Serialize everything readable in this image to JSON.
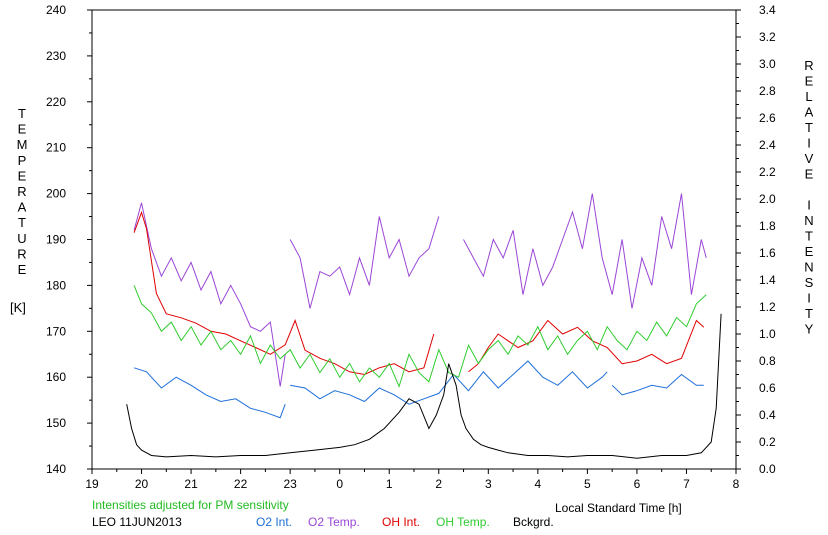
{
  "chart_data": {
    "type": "line",
    "x_label": "Local Standard Time [h]",
    "x_ticks": [
      "19",
      "20",
      "21",
      "22",
      "23",
      "0",
      "1",
      "2",
      "3",
      "4",
      "5",
      "6",
      "7",
      "8"
    ],
    "y_left_label_letters": [
      "T",
      "E",
      "M",
      "P",
      "E",
      "R",
      "A",
      "T",
      "U",
      "R",
      "E"
    ],
    "y_left_unit": "[K]",
    "y_left_ticks": [
      "140",
      "150",
      "160",
      "170",
      "180",
      "190",
      "200",
      "210",
      "220",
      "230",
      "240"
    ],
    "ylim_left": [
      140,
      240
    ],
    "y_right_label_letters": [
      "R",
      "E",
      "L",
      "A",
      "T",
      "I",
      "V",
      "E",
      "",
      "I",
      "N",
      "T",
      "E",
      "N",
      "S",
      "I",
      "T",
      "Y"
    ],
    "y_right_ticks": [
      "0.0",
      "0.2",
      "0.4",
      "0.6",
      "0.8",
      "1.0",
      "1.2",
      "1.4",
      "1.6",
      "1.8",
      "2.0",
      "2.2",
      "2.4",
      "2.6",
      "2.8",
      "3.0",
      "3.2",
      "3.4"
    ],
    "ylim_right": [
      0,
      3.4
    ],
    "xlim": [
      19,
      32
    ],
    "note": "Intensities adjusted for PM sensitivity",
    "station": "LEO 11JUN2013",
    "colors": {
      "o2_int": "#1e6fd9",
      "o2_temp": "#9b46d6",
      "oh_int": "#e00000",
      "oh_temp": "#30cc30",
      "bckgrd": "#000000",
      "note": "#22bb22"
    },
    "series": [
      {
        "name": "O2 Int.",
        "axis": "right",
        "segments": [
          {
            "x": [
              19.85,
              20.1,
              20.4,
              20.7,
              21.0,
              21.3,
              21.6,
              21.9,
              22.2,
              22.5,
              22.8,
              22.9
            ],
            "y": [
              0.75,
              0.72,
              0.6,
              0.68,
              0.62,
              0.55,
              0.5,
              0.52,
              0.45,
              0.42,
              0.38,
              0.48
            ]
          },
          {
            "x": [
              23.0,
              23.3,
              23.6,
              23.9,
              24.2,
              24.5,
              24.8,
              25.1,
              25.4,
              25.7,
              26.0,
              26.3,
              26.6,
              26.9,
              27.2,
              27.5,
              27.8,
              28.1,
              28.4,
              28.7,
              29.0,
              29.3,
              29.4
            ],
            "y": [
              0.62,
              0.6,
              0.52,
              0.58,
              0.55,
              0.5,
              0.6,
              0.55,
              0.48,
              0.52,
              0.56,
              0.7,
              0.58,
              0.72,
              0.6,
              0.7,
              0.8,
              0.68,
              0.62,
              0.72,
              0.6,
              0.68,
              0.72
            ]
          },
          {
            "x": [
              29.5,
              29.7,
              30.0,
              30.3,
              30.6,
              30.9,
              31.2,
              31.35
            ],
            "y": [
              0.62,
              0.55,
              0.58,
              0.62,
              0.6,
              0.7,
              0.62,
              0.62
            ]
          }
        ]
      },
      {
        "name": "O2 Temp.",
        "axis": "left",
        "segments": [
          {
            "x": [
              19.85,
              20.0,
              20.2,
              20.4,
              20.6,
              20.8,
              21.0,
              21.2,
              21.4,
              21.6,
              21.8,
              22.0,
              22.2,
              22.4,
              22.6,
              22.8,
              22.9
            ],
            "y": [
              192,
              198,
              188,
              182,
              186,
              181,
              185,
              179,
              183,
              176,
              180,
              176,
              171,
              170,
              172,
              158,
              165
            ]
          },
          {
            "x": [
              23.0,
              23.2,
              23.4,
              23.6,
              23.8,
              24.0,
              24.2,
              24.4,
              24.6,
              24.8,
              25.0,
              25.2,
              25.4,
              25.6,
              25.8,
              26.0
            ],
            "y": [
              190,
              186,
              175,
              183,
              182,
              184,
              178,
              186,
              180,
              195,
              186,
              190,
              182,
              186,
              188,
              195
            ]
          },
          {
            "x": [
              26.5,
              26.7,
              26.9,
              27.1,
              27.3,
              27.5,
              27.7,
              27.9,
              28.1,
              28.3,
              28.5,
              28.7,
              28.9,
              29.1,
              29.3,
              29.5,
              29.7,
              29.9,
              30.1,
              30.3,
              30.5,
              30.7,
              30.9,
              31.1,
              31.3,
              31.4
            ],
            "y": [
              190,
              186,
              182,
              190,
              186,
              192,
              178,
              188,
              180,
              184,
              190,
              196,
              188,
              200,
              186,
              178,
              190,
              175,
              186,
              180,
              195,
              188,
              200,
              178,
              190,
              186
            ]
          }
        ]
      },
      {
        "name": "OH Int.",
        "axis": "right",
        "segments": [
          {
            "x": [
              19.85,
              20.0,
              20.1,
              20.3,
              20.5,
              20.8,
              21.1,
              21.4,
              21.7,
              22.0,
              22.3,
              22.6,
              22.9,
              23.1,
              23.3,
              23.6,
              23.9,
              24.2,
              24.5,
              24.8,
              25.1,
              25.4,
              25.7,
              25.9
            ],
            "y": [
              1.75,
              1.9,
              1.78,
              1.3,
              1.15,
              1.12,
              1.08,
              1.02,
              1.0,
              0.95,
              0.9,
              0.85,
              0.92,
              1.1,
              0.88,
              0.82,
              0.78,
              0.72,
              0.7,
              0.75,
              0.78,
              0.72,
              0.75,
              1.0
            ]
          },
          {
            "x": [
              26.6,
              26.8,
              27.0,
              27.2,
              27.4,
              27.6,
              27.9,
              28.2,
              28.5,
              28.8,
              29.1,
              29.4,
              29.7,
              30.0,
              30.3,
              30.6,
              30.9,
              31.2,
              31.35
            ],
            "y": [
              0.72,
              0.78,
              0.9,
              1.0,
              0.95,
              0.9,
              0.95,
              1.1,
              1.0,
              1.05,
              0.95,
              0.9,
              0.78,
              0.8,
              0.85,
              0.78,
              0.82,
              1.1,
              1.05
            ]
          }
        ]
      },
      {
        "name": "OH Temp.",
        "axis": "left",
        "segments": [
          {
            "x": [
              19.85,
              20.0,
              20.2,
              20.4,
              20.6,
              20.8,
              21.0,
              21.2,
              21.4,
              21.6,
              21.8,
              22.0,
              22.2,
              22.4,
              22.6,
              22.8,
              23.0,
              23.2,
              23.4,
              23.6,
              23.8,
              24.0,
              24.2,
              24.4,
              24.6,
              24.8,
              25.0,
              25.2,
              25.4,
              25.6,
              25.8,
              26.0,
              26.2,
              26.4,
              26.6,
              26.8,
              27.0,
              27.2,
              27.4,
              27.6,
              27.8,
              28.0,
              28.2,
              28.4,
              28.6,
              28.8,
              29.0,
              29.2,
              29.4,
              29.6,
              29.8,
              30.0,
              30.2,
              30.4,
              30.6,
              30.8,
              31.0,
              31.2,
              31.4
            ],
            "y": [
              180,
              176,
              174,
              170,
              172,
              168,
              171,
              167,
              170,
              166,
              168,
              165,
              169,
              163,
              167,
              164,
              166,
              162,
              165,
              161,
              164,
              160,
              163,
              159,
              162,
              160,
              163,
              158,
              165,
              161,
              159,
              166,
              161,
              160,
              167,
              163,
              166,
              168,
              165,
              169,
              167,
              171,
              166,
              169,
              165,
              168,
              170,
              166,
              171,
              168,
              166,
              170,
              168,
              172,
              169,
              173,
              171,
              176,
              178
            ]
          }
        ]
      },
      {
        "name": "Bckgrd.",
        "axis": "right",
        "segments": [
          {
            "x": [
              19.7,
              19.8,
              19.9,
              20.0,
              20.2,
              20.5,
              21.0,
              21.5,
              22.0,
              22.5,
              23.0,
              23.5,
              24.0,
              24.3,
              24.6,
              24.9,
              25.2,
              25.4,
              25.6,
              25.8,
              25.95,
              26.1,
              26.2,
              26.35,
              26.45,
              26.55,
              26.7,
              26.85,
              27.0,
              27.2,
              27.4,
              27.8,
              28.2,
              28.6,
              29.0,
              29.5,
              30.0,
              30.5,
              31.0,
              31.3,
              31.5,
              31.6,
              31.7
            ],
            "y": [
              0.48,
              0.3,
              0.18,
              0.14,
              0.1,
              0.09,
              0.1,
              0.09,
              0.1,
              0.1,
              0.12,
              0.14,
              0.16,
              0.18,
              0.22,
              0.3,
              0.42,
              0.52,
              0.48,
              0.3,
              0.4,
              0.55,
              0.78,
              0.62,
              0.4,
              0.3,
              0.22,
              0.18,
              0.16,
              0.14,
              0.12,
              0.1,
              0.1,
              0.09,
              0.1,
              0.1,
              0.08,
              0.1,
              0.1,
              0.12,
              0.2,
              0.45,
              1.15
            ]
          }
        ]
      }
    ]
  }
}
